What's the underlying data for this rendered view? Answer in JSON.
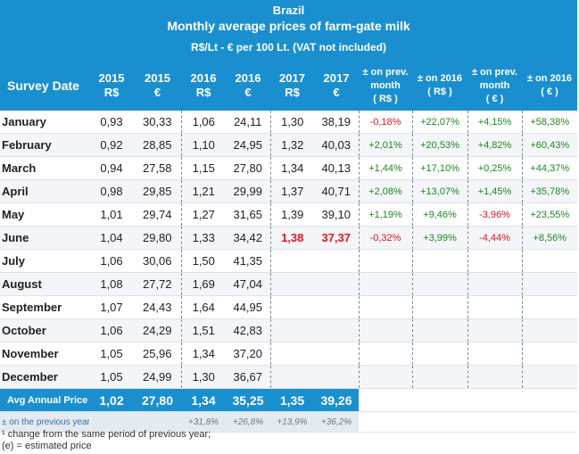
{
  "title": {
    "country": "Brazil",
    "main": "Monthly average prices of farm-gate milk",
    "sub": "R$/Lt - € per 100 Lt. (VAT not included)"
  },
  "headers": {
    "survey_date": "Survey Date",
    "cols": [
      [
        "2015",
        "R$"
      ],
      [
        "2015",
        "€"
      ],
      [
        "2016",
        "R$"
      ],
      [
        "2016",
        "€"
      ],
      [
        "2017",
        "R$"
      ],
      [
        "2017",
        "€"
      ],
      [
        "± on prev.",
        "month",
        "( R$ )"
      ],
      [
        "± on 2016",
        "( R$ )"
      ],
      [
        "± on prev.",
        "month",
        "( € )"
      ],
      [
        "± on 2016",
        "( € )"
      ]
    ]
  },
  "rows": [
    {
      "month": "January",
      "v": [
        "0,93",
        "30,33",
        "1,06",
        "24,11",
        "1,30",
        "38,19"
      ],
      "p": [
        "-0,18%",
        "+22,07%",
        "+4,15%",
        "+58,38%"
      ]
    },
    {
      "month": "February",
      "v": [
        "0,92",
        "28,85",
        "1,10",
        "24,95",
        "1,32",
        "40,03"
      ],
      "p": [
        "+2,01%",
        "+20,53%",
        "+4,82%",
        "+60,43%"
      ]
    },
    {
      "month": "March",
      "v": [
        "0,94",
        "27,58",
        "1,15",
        "27,80",
        "1,34",
        "40,13"
      ],
      "p": [
        "+1,44%",
        "+17,10%",
        "+0,25%",
        "+44,37%"
      ]
    },
    {
      "month": "April",
      "v": [
        "0,98",
        "29,85",
        "1,21",
        "29,99",
        "1,37",
        "40,71"
      ],
      "p": [
        "+2,08%",
        "+13,07%",
        "+1,45%",
        "+35,78%"
      ]
    },
    {
      "month": "May",
      "v": [
        "1,01",
        "29,74",
        "1,27",
        "31,65",
        "1,39",
        "39,10"
      ],
      "p": [
        "+1,19%",
        "+9,46%",
        "-3,96%",
        "+23,55%"
      ]
    },
    {
      "month": "June",
      "v": [
        "1,04",
        "29,80",
        "1,33",
        "34,42",
        "1,38",
        "37,37"
      ],
      "p": [
        "-0,32%",
        "+3,99%",
        "-4,44%",
        "+8,56%"
      ]
    },
    {
      "month": "July",
      "v": [
        "1,06",
        "30,06",
        "1,50",
        "41,35",
        "",
        ""
      ],
      "p": [
        "",
        "",
        "",
        ""
      ]
    },
    {
      "month": "August",
      "v": [
        "1,08",
        "27,72",
        "1,69",
        "47,04",
        "",
        ""
      ],
      "p": [
        "",
        "",
        "",
        ""
      ]
    },
    {
      "month": "September",
      "v": [
        "1,07",
        "24,43",
        "1,64",
        "44,95",
        "",
        ""
      ],
      "p": [
        "",
        "",
        "",
        ""
      ]
    },
    {
      "month": "October",
      "v": [
        "1,06",
        "24,29",
        "1,51",
        "42,83",
        "",
        ""
      ],
      "p": [
        "",
        "",
        "",
        ""
      ]
    },
    {
      "month": "November",
      "v": [
        "1,05",
        "25,96",
        "1,34",
        "37,20",
        "",
        ""
      ],
      "p": [
        "",
        "",
        "",
        ""
      ]
    },
    {
      "month": "December",
      "v": [
        "1,05",
        "24,99",
        "1,30",
        "36,67",
        "",
        ""
      ],
      "p": [
        "",
        "",
        "",
        ""
      ]
    }
  ],
  "avg": {
    "label": "Avg Annual Price",
    "v": [
      "1,02",
      "27,80",
      "1,34",
      "35,25",
      "1,35",
      "39,26"
    ]
  },
  "prev": {
    "label": "± on the previous year¹",
    "v": [
      "",
      "",
      "+31,8%",
      "+26,8%",
      "+13,9%",
      "+36,2%"
    ]
  },
  "footnotes": [
    "¹ change from the same period of previous year;",
    "(e) = estimated price"
  ],
  "colors": {
    "header": "#1a8fd0",
    "neg": "#e0161c",
    "pos": "#1c8a1c"
  }
}
